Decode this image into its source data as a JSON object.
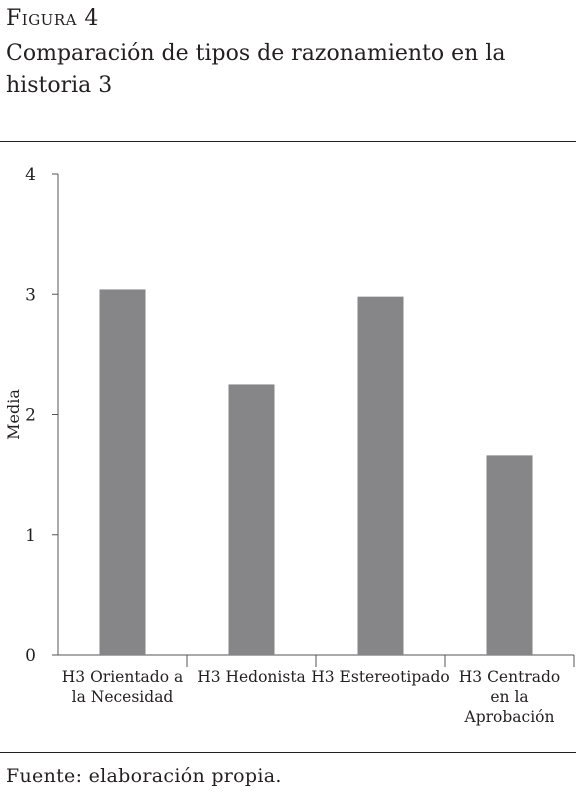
{
  "figure": {
    "label": "Figura 4",
    "title": "Comparación de tipos de razonamiento en la historia 3",
    "source": "Fuente: elaboración propia."
  },
  "colors": {
    "bar": "#868689",
    "axis": "#555555",
    "text": "#231f20"
  },
  "chart_data": {
    "type": "bar",
    "title": "",
    "xlabel": "",
    "ylabel": "Media",
    "ylim": [
      0,
      4
    ],
    "yticks": [
      0,
      1,
      2,
      3,
      4
    ],
    "grid": false,
    "categories": [
      [
        "H3 Orientado a",
        "la Necesidad"
      ],
      [
        "H3 Hedonista"
      ],
      [
        "H3 Estereotipado"
      ],
      [
        "H3 Centrado",
        "en la",
        "Aprobación"
      ]
    ],
    "values": [
      3.04,
      2.25,
      2.98,
      1.66
    ]
  }
}
